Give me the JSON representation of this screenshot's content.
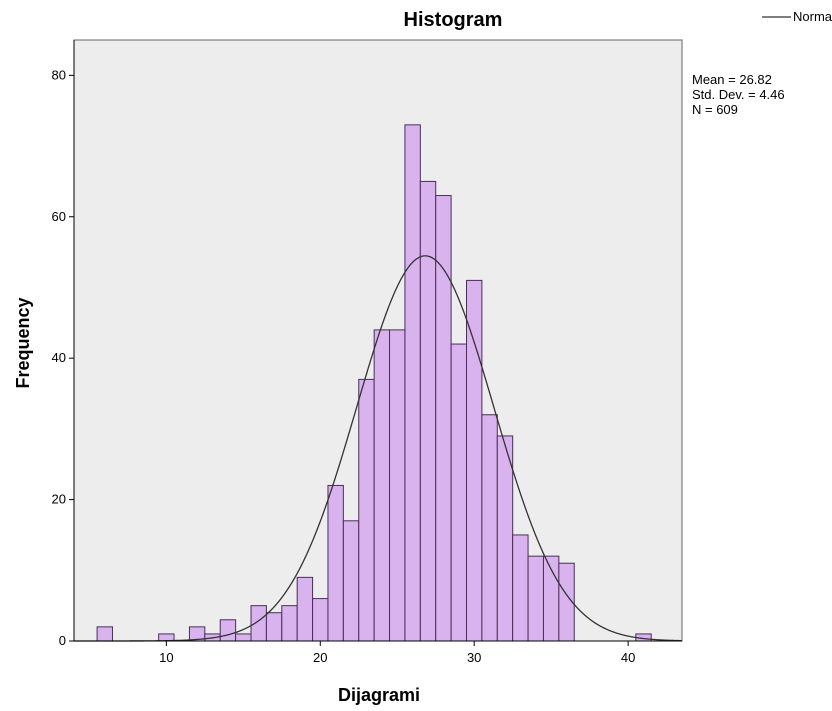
{
  "chart_data": {
    "type": "bar",
    "title": "Histogram",
    "xlabel": "Dijagrami",
    "ylabel": "Frequency",
    "xlim": [
      4,
      43.5
    ],
    "ylim": [
      0,
      85
    ],
    "x_ticks": [
      10,
      20,
      30,
      40
    ],
    "y_ticks": [
      0,
      20,
      40,
      60,
      80
    ],
    "bin_width": 1,
    "bins": [
      {
        "start": 5.5,
        "end": 6.5,
        "count": 2
      },
      {
        "start": 9.5,
        "end": 10.5,
        "count": 1
      },
      {
        "start": 11.5,
        "end": 12.5,
        "count": 2
      },
      {
        "start": 12.5,
        "end": 13.5,
        "count": 1
      },
      {
        "start": 13.5,
        "end": 14.5,
        "count": 3
      },
      {
        "start": 14.5,
        "end": 15.5,
        "count": 1
      },
      {
        "start": 15.5,
        "end": 16.5,
        "count": 5
      },
      {
        "start": 16.5,
        "end": 17.5,
        "count": 4
      },
      {
        "start": 17.5,
        "end": 18.5,
        "count": 5
      },
      {
        "start": 18.5,
        "end": 19.5,
        "count": 9
      },
      {
        "start": 19.5,
        "end": 20.5,
        "count": 6
      },
      {
        "start": 20.5,
        "end": 21.5,
        "count": 22
      },
      {
        "start": 21.5,
        "end": 22.5,
        "count": 17
      },
      {
        "start": 22.5,
        "end": 23.5,
        "count": 37
      },
      {
        "start": 23.5,
        "end": 24.5,
        "count": 44
      },
      {
        "start": 24.5,
        "end": 25.5,
        "count": 44
      },
      {
        "start": 25.5,
        "end": 26.5,
        "count": 73
      },
      {
        "start": 26.5,
        "end": 27.5,
        "count": 65
      },
      {
        "start": 27.5,
        "end": 28.5,
        "count": 63
      },
      {
        "start": 28.5,
        "end": 29.5,
        "count": 42
      },
      {
        "start": 29.5,
        "end": 30.5,
        "count": 51
      },
      {
        "start": 30.5,
        "end": 31.5,
        "count": 32
      },
      {
        "start": 31.5,
        "end": 32.5,
        "count": 29
      },
      {
        "start": 32.5,
        "end": 33.5,
        "count": 15
      },
      {
        "start": 33.5,
        "end": 34.5,
        "count": 12
      },
      {
        "start": 34.5,
        "end": 35.5,
        "count": 12
      },
      {
        "start": 35.5,
        "end": 36.5,
        "count": 11
      },
      {
        "start": 40.5,
        "end": 41.5,
        "count": 1
      }
    ],
    "normal_curve": {
      "name": "Normal",
      "mean": 26.82,
      "std_dev": 4.46,
      "n": 609
    },
    "stats": {
      "mean_line": "Mean = 26.82",
      "std_line": "Std. Dev. = 4.46",
      "n_line": "N = 609"
    },
    "legend": {
      "placement": "top-right",
      "entries": [
        "Normal"
      ]
    },
    "grid": false,
    "colors": {
      "bar_fill": "#D9B3EE",
      "bar_stroke": "#4A2D59",
      "plot_background": "#EDEDED",
      "curve": "#333333",
      "axis": "#000000"
    }
  }
}
